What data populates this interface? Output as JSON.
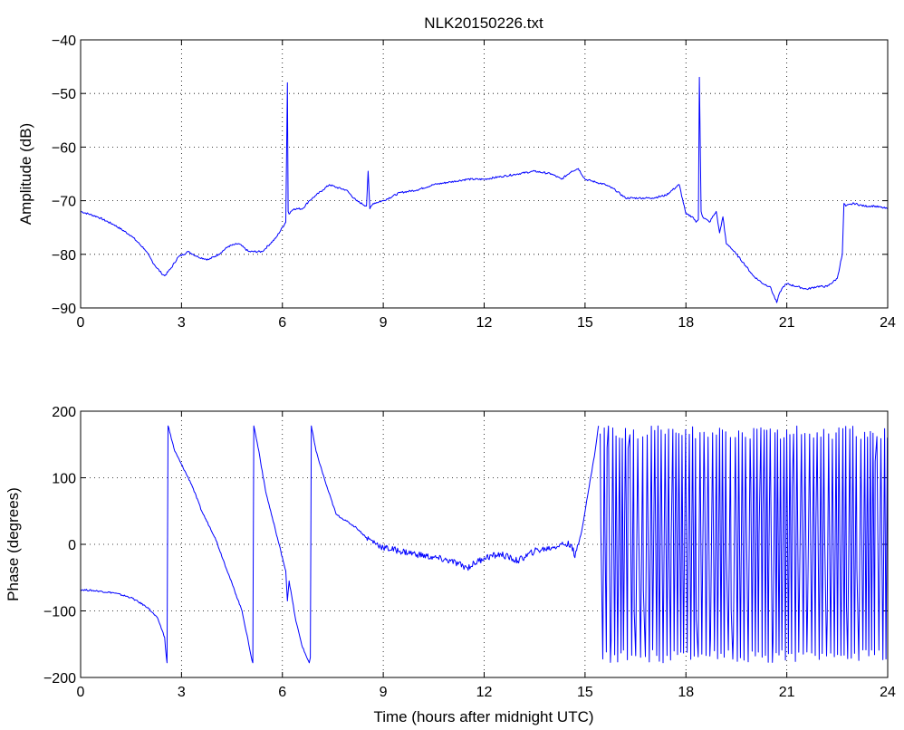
{
  "chart_data": [
    {
      "type": "line",
      "title": "NLK20150226.txt",
      "xlabel": "",
      "ylabel": "Amplitude (dB)",
      "xlim": [
        0,
        24
      ],
      "ylim": [
        -90,
        -40
      ],
      "xticks": [
        "0",
        "3",
        "6",
        "9",
        "12",
        "15",
        "18",
        "21",
        "24"
      ],
      "yticks": [
        "−40",
        "−50",
        "−60",
        "−70",
        "−80",
        "−90"
      ],
      "grid": true,
      "series": [
        {
          "color": "#0000ff",
          "x": [
            0,
            0.5,
            1.0,
            1.5,
            1.9,
            2.2,
            2.4,
            2.5,
            2.7,
            2.9,
            3.2,
            3.5,
            3.8,
            4.1,
            4.4,
            4.7,
            5.0,
            5.4,
            5.8,
            6.1,
            6.15,
            6.17,
            6.2,
            6.25,
            6.35,
            6.6,
            6.8,
            7.0,
            7.2,
            7.4,
            7.6,
            7.9,
            8.2,
            8.5,
            8.55,
            8.6,
            8.7,
            9.0,
            9.5,
            10.0,
            10.5,
            11.0,
            11.5,
            12.0,
            12.5,
            13.0,
            13.5,
            14.0,
            14.3,
            14.6,
            14.8,
            15.0,
            15.3,
            15.6,
            15.9,
            16.2,
            16.6,
            17.0,
            17.4,
            17.8,
            18.0,
            18.2,
            18.3,
            18.37,
            18.4,
            18.45,
            18.5,
            18.7,
            18.9,
            19.0,
            19.1,
            19.2,
            19.3,
            19.5,
            19.7,
            20.0,
            20.3,
            20.5,
            20.7,
            20.8,
            20.9,
            21.0,
            21.3,
            21.6,
            21.9,
            22.2,
            22.5,
            22.65,
            22.7,
            22.75,
            23.0,
            23.3,
            23.6,
            24.0
          ],
          "y": [
            -72,
            -73,
            -74.5,
            -76.5,
            -79,
            -82,
            -83.5,
            -84,
            -82.5,
            -80.5,
            -79.5,
            -80.5,
            -81,
            -80,
            -78.5,
            -78,
            -79.5,
            -79.5,
            -77,
            -74,
            -48,
            -72,
            -72.5,
            -72,
            -71.5,
            -71.5,
            -70,
            -69,
            -68,
            -67,
            -67.5,
            -68,
            -70,
            -71,
            -64.5,
            -71.5,
            -70.5,
            -70,
            -68.5,
            -68,
            -67,
            -66.5,
            -66,
            -66,
            -65.5,
            -65,
            -64.5,
            -65,
            -66,
            -64.5,
            -64,
            -66,
            -66.5,
            -67,
            -68,
            -69.5,
            -69.5,
            -69.5,
            -69,
            -67,
            -72.5,
            -73,
            -74,
            -73.5,
            -47,
            -72,
            -73,
            -74,
            -72,
            -76,
            -73,
            -78,
            -78.5,
            -80,
            -81.5,
            -84,
            -85.5,
            -86,
            -89,
            -87,
            -86,
            -85.5,
            -86,
            -86.5,
            -86,
            -86,
            -84.5,
            -80,
            -70.5,
            -71,
            -70.5,
            -71,
            -71,
            -71.5
          ]
        }
      ]
    },
    {
      "type": "line",
      "title": "",
      "xlabel": "Time (hours after midnight UTC)",
      "ylabel": "Phase (degrees)",
      "xlim": [
        0,
        24
      ],
      "ylim": [
        -200,
        200
      ],
      "xticks": [
        "0",
        "3",
        "6",
        "9",
        "12",
        "15",
        "18",
        "21",
        "24"
      ],
      "yticks": [
        "200",
        "100",
        "0",
        "−100",
        "−200"
      ],
      "grid": true,
      "series": [
        {
          "color": "#0000ff",
          "x": [
            0,
            0.5,
            1.0,
            1.5,
            2.0,
            2.3,
            2.5,
            2.55,
            2.57,
            2.6,
            2.8,
            3.0,
            3.3,
            3.6,
            4.0,
            4.4,
            4.8,
            5.0,
            5.1,
            5.12,
            5.15,
            5.3,
            5.5,
            5.8,
            6.0,
            6.1,
            6.15,
            6.2,
            6.4,
            6.6,
            6.8,
            6.83,
            6.86,
            7.0,
            7.3,
            7.6,
            7.9,
            8.2,
            8.5,
            9.0,
            9.5,
            10.0,
            10.5,
            11.0,
            11.5,
            12.0,
            12.5,
            13.0,
            13.5,
            14.0,
            14.3,
            14.6,
            14.7,
            14.9,
            15.1,
            15.3,
            15.4
          ],
          "y": [
            -68,
            -70,
            -73,
            -80,
            -95,
            -112,
            -140,
            -170,
            -178,
            178,
            140,
            120,
            90,
            50,
            10,
            -45,
            -100,
            -150,
            -175,
            -178,
            178,
            140,
            80,
            20,
            -20,
            -40,
            -85,
            -55,
            -115,
            -155,
            -178,
            -170,
            178,
            140,
            90,
            45,
            35,
            25,
            10,
            -5,
            -10,
            -15,
            -20,
            -25,
            -35,
            -20,
            -15,
            -25,
            -10,
            -5,
            0,
            0,
            -20,
            20,
            80,
            140,
            178
          ]
        }
      ],
      "noise_region": {
        "x_range": [
          15.45,
          24
        ],
        "y_range": [
          -178,
          178
        ],
        "description": "rapid phase wrapping between -180 and 180 degrees"
      }
    }
  ]
}
